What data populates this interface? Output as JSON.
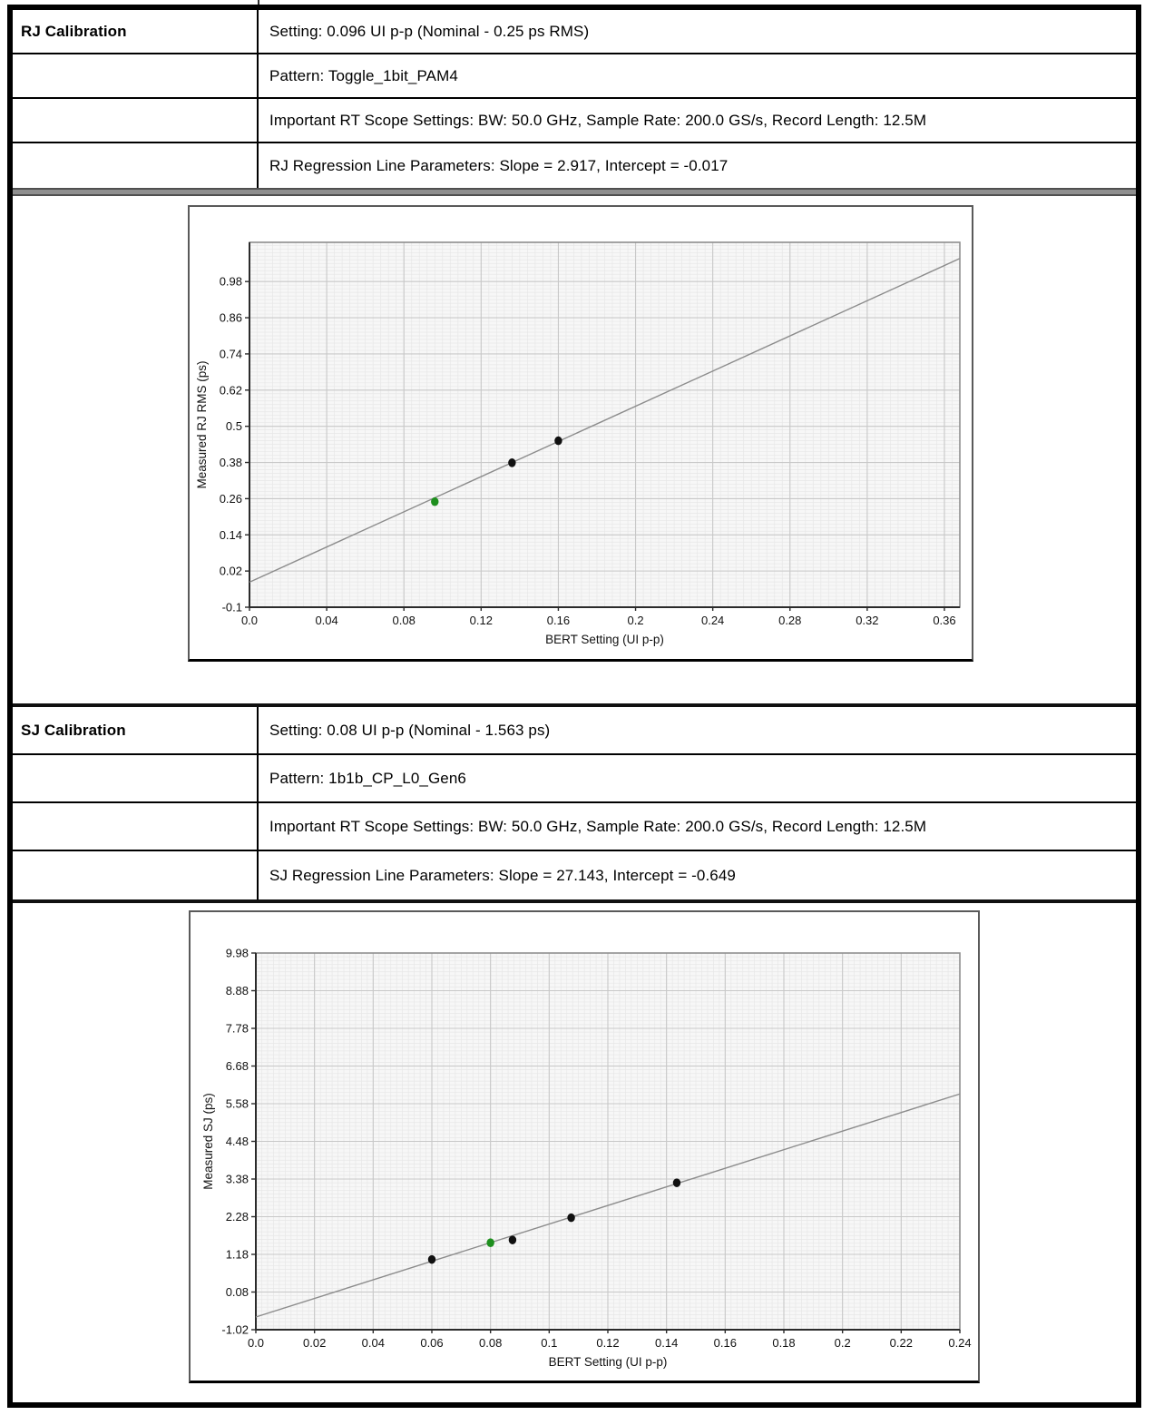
{
  "tables": [
    {
      "header": "RJ Calibration",
      "rows": [
        "Setting: 0.096 UI p-p (Nominal - 0.25 ps RMS)",
        "Pattern: Toggle_1bit_PAM4",
        "Important RT Scope Settings: BW: 50.0 GHz, Sample Rate: 200.0 GS/s, Record Length: 12.5M",
        "RJ Regression Line Parameters: Slope = 2.917, Intercept = -0.017"
      ]
    },
    {
      "header": "SJ Calibration",
      "rows": [
        "Setting: 0.08 UI p-p (Nominal - 1.563 ps)",
        "Pattern: 1b1b_CP_L0_Gen6",
        "Important RT Scope Settings: BW: 50.0 GHz, Sample Rate: 200.0 GS/s, Record Length: 12.5M",
        "SJ Regression Line Parameters: Slope = 27.143, Intercept = -0.649"
      ]
    }
  ],
  "chart_data": [
    {
      "type": "scatter",
      "title": "",
      "xlabel": "BERT Setting (UI p-p)",
      "ylabel": "Measured RJ RMS (ps)",
      "xlim": [
        0,
        0.368
      ],
      "ylim": [
        -0.1,
        1.11
      ],
      "xtick_values": [
        0.0,
        0.04,
        0.08,
        0.12,
        0.16,
        0.2,
        0.24,
        0.28,
        0.32,
        0.36
      ],
      "xtick_labels": [
        "0.0",
        "0.04",
        "0.08",
        "0.12",
        "0.16",
        "0.2",
        "0.24",
        "0.28",
        "0.32",
        "0.36"
      ],
      "ytick_values": [
        -0.1,
        0.02,
        0.14,
        0.26,
        0.38,
        0.5,
        0.62,
        0.74,
        0.86,
        0.98
      ],
      "ytick_labels": [
        "-0.1",
        "0.02",
        "0.14",
        "0.26",
        "0.38",
        "0.5",
        "0.62",
        "0.74",
        "0.86",
        "0.98"
      ],
      "grid": {
        "x_minor": 0.004,
        "y_minor": 0.012
      },
      "regression": {
        "slope": 2.917,
        "intercept": -0.017
      },
      "points": [
        {
          "x": 0.096,
          "y": 0.25,
          "color": "green"
        },
        {
          "x": 0.136,
          "y": 0.379,
          "color": "black"
        },
        {
          "x": 0.16,
          "y": 0.452,
          "color": "black"
        }
      ],
      "legend": "none",
      "grid_on": true,
      "colors": {
        "plot_bg": "#f7f7f7",
        "grid_minor": "#e7e7e7",
        "grid_major": "#c8c8c8",
        "plot_border": "#8f8f8f",
        "axis": "#2b2b2b",
        "fit_line": "#8c8c8c",
        "black": "#101010",
        "green": "#1e8f1e"
      }
    },
    {
      "type": "scatter",
      "title": "",
      "xlabel": "BERT Setting (UI p-p)",
      "ylabel": "Measured SJ (ps)",
      "xlim": [
        0,
        0.24
      ],
      "ylim": [
        -1.02,
        9.98
      ],
      "xtick_values": [
        0.0,
        0.02,
        0.04,
        0.06,
        0.08,
        0.1,
        0.12,
        0.14,
        0.16,
        0.18,
        0.2,
        0.22,
        0.24
      ],
      "xtick_labels": [
        "0.0",
        "0.02",
        "0.04",
        "0.06",
        "0.08",
        "0.1",
        "0.12",
        "0.14",
        "0.16",
        "0.18",
        "0.2",
        "0.22",
        "0.24"
      ],
      "ytick_values": [
        -1.02,
        0.08,
        1.18,
        2.28,
        3.38,
        4.48,
        5.58,
        6.68,
        7.78,
        8.88,
        9.98
      ],
      "ytick_labels": [
        "-1.02",
        "0.08",
        "1.18",
        "2.28",
        "3.38",
        "4.48",
        "5.58",
        "6.68",
        "7.78",
        "8.88",
        "9.98"
      ],
      "grid": {
        "x_minor": 0.002,
        "y_minor": 0.11
      },
      "regression": {
        "slope": 27.143,
        "intercept": -0.649
      },
      "points": [
        {
          "x": 0.06,
          "y": 1.03,
          "color": "black"
        },
        {
          "x": 0.08,
          "y": 1.52,
          "color": "green"
        },
        {
          "x": 0.0875,
          "y": 1.6,
          "color": "black"
        },
        {
          "x": 0.1075,
          "y": 2.25,
          "color": "black"
        },
        {
          "x": 0.1435,
          "y": 3.27,
          "color": "black"
        }
      ],
      "legend": "none",
      "grid_on": true,
      "colors": {
        "plot_bg": "#f7f7f7",
        "grid_minor": "#e7e7e7",
        "grid_major": "#c8c8c8",
        "plot_border": "#8f8f8f",
        "axis": "#2b2b2b",
        "fit_line": "#8c8c8c",
        "black": "#101010",
        "green": "#1e8f1e"
      }
    }
  ]
}
